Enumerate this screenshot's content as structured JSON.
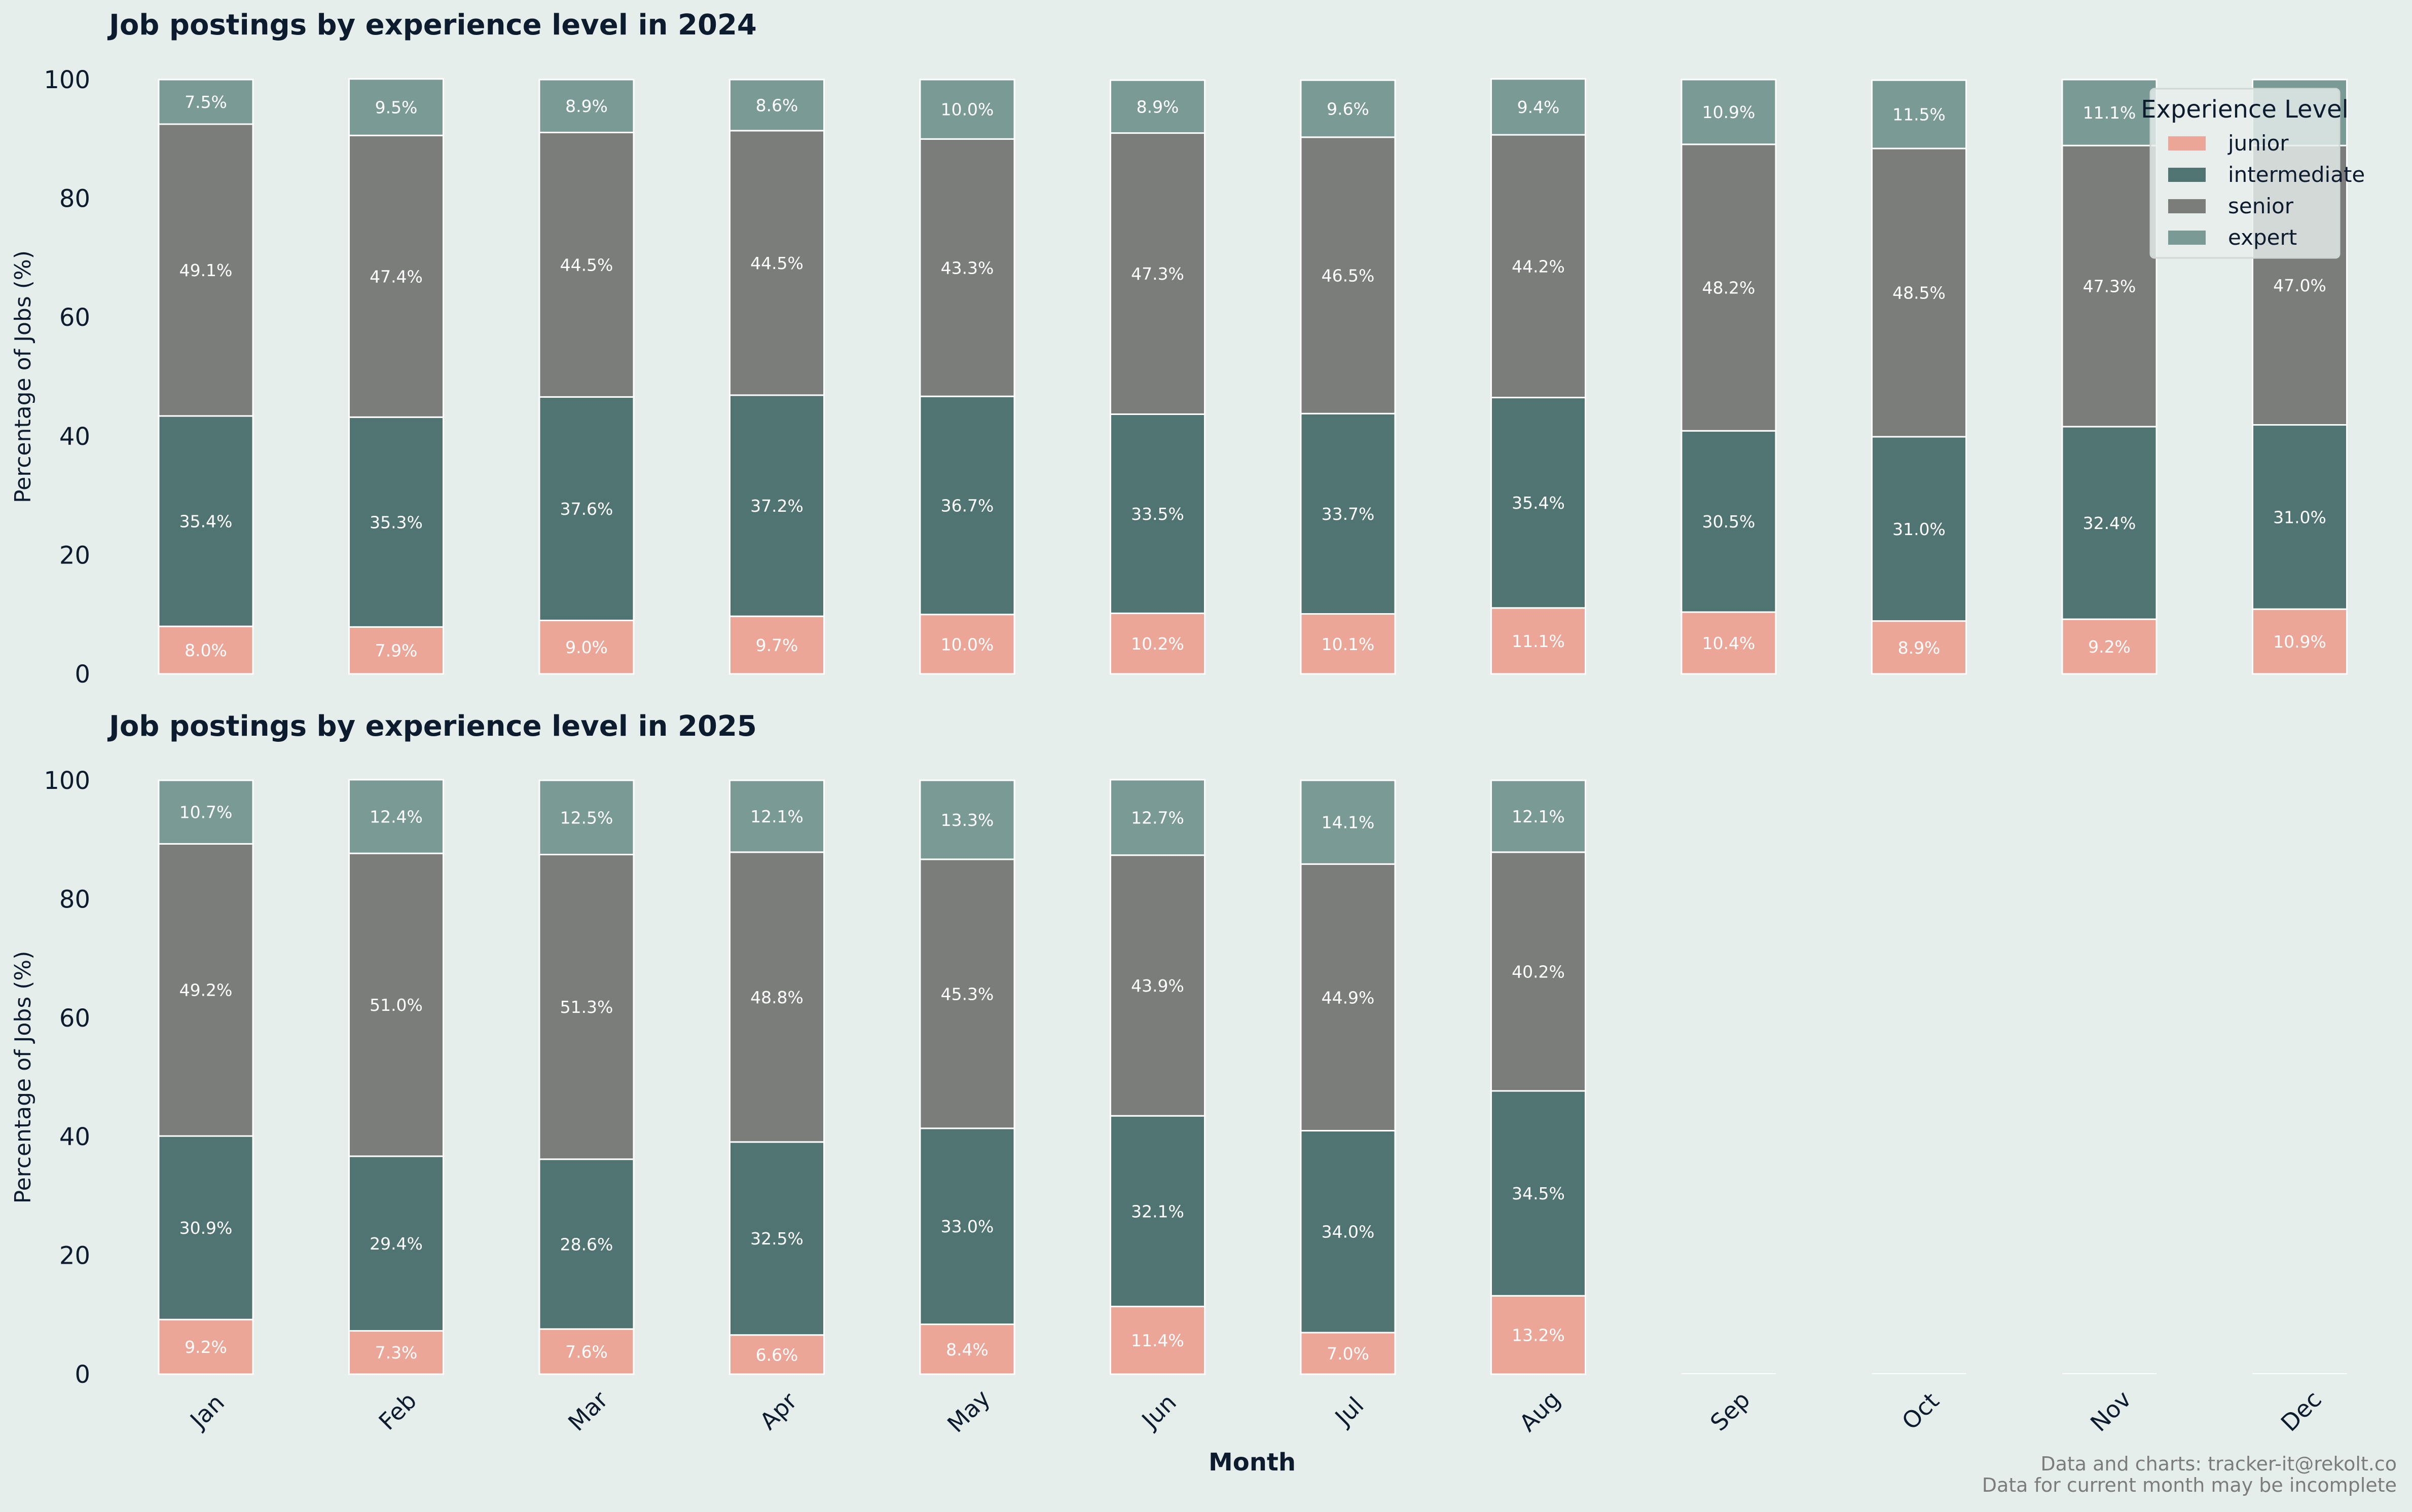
{
  "colors": {
    "background": "#e6eeeb",
    "title": "#0d1b2e",
    "axis_text": "#0d1b2e",
    "junior": "#eba698",
    "intermediate": "#4f7471",
    "senior": "#7b7d7b",
    "expert": "#7a9a96",
    "bar_edge": "#ffffff",
    "label_text": "#ffffff",
    "footer_text": "#7b7d7b"
  },
  "legend": {
    "title": "Experience Level",
    "items": [
      "junior",
      "intermediate",
      "senior",
      "expert"
    ]
  },
  "footer": {
    "line1": "Data and charts: tracker-it@rekolt.co",
    "line2": "Data for current month may be incomplete"
  },
  "chart_data": [
    {
      "type": "bar",
      "stacked": true,
      "title": "Job postings by experience level in 2024",
      "xlabel": "",
      "ylabel": "Percentage of Jobs (%)",
      "ylim": [
        0,
        100
      ],
      "yticks": [
        "0",
        "20",
        "40",
        "60",
        "80",
        "100"
      ],
      "legend_position": "top-right",
      "categories": [
        "Jan",
        "Feb",
        "Mar",
        "Apr",
        "May",
        "Jun",
        "Jul",
        "Aug",
        "Sep",
        "Oct",
        "Nov",
        "Dec"
      ],
      "series": [
        {
          "name": "junior",
          "values": [
            8.0,
            7.9,
            9.0,
            9.7,
            10.0,
            10.2,
            10.1,
            11.1,
            10.4,
            8.9,
            9.2,
            10.9
          ],
          "labels": [
            "8.0%",
            "7.9%",
            "9.0%",
            "9.7%",
            "10.0%",
            "10.2%",
            "10.1%",
            "11.1%",
            "10.4%",
            "8.9%",
            "9.2%",
            "10.9%"
          ]
        },
        {
          "name": "intermediate",
          "values": [
            35.4,
            35.3,
            37.6,
            37.2,
            36.7,
            33.5,
            33.7,
            35.4,
            30.5,
            31.0,
            32.4,
            31.0
          ],
          "labels": [
            "35.4%",
            "35.3%",
            "37.6%",
            "37.2%",
            "36.7%",
            "33.5%",
            "33.7%",
            "35.4%",
            "30.5%",
            "31.0%",
            "32.4%",
            "31.0%"
          ]
        },
        {
          "name": "senior",
          "values": [
            49.1,
            47.4,
            44.5,
            44.5,
            43.3,
            47.3,
            46.5,
            44.2,
            48.2,
            48.5,
            47.3,
            47.0
          ],
          "labels": [
            "49.1%",
            "47.4%",
            "44.5%",
            "44.5%",
            "43.3%",
            "47.3%",
            "46.5%",
            "44.2%",
            "48.2%",
            "48.5%",
            "47.3%",
            "47.0%"
          ]
        },
        {
          "name": "expert",
          "values": [
            7.5,
            9.5,
            8.9,
            8.6,
            10.0,
            8.9,
            9.6,
            9.4,
            10.9,
            11.5,
            11.1,
            11.1
          ],
          "labels": [
            "7.5%",
            "9.5%",
            "8.9%",
            "8.6%",
            "10.0%",
            "8.9%",
            "9.6%",
            "9.4%",
            "10.9%",
            "11.5%",
            "11.1%",
            ""
          ]
        }
      ]
    },
    {
      "type": "bar",
      "stacked": true,
      "title": "Job postings by experience level in 2025",
      "xlabel": "Month",
      "ylabel": "Percentage of Jobs (%)",
      "ylim": [
        0,
        100
      ],
      "yticks": [
        "0",
        "20",
        "40",
        "60",
        "80",
        "100"
      ],
      "categories": [
        "Jan",
        "Feb",
        "Mar",
        "Apr",
        "May",
        "Jun",
        "Jul",
        "Aug",
        "Sep",
        "Oct",
        "Nov",
        "Dec"
      ],
      "series": [
        {
          "name": "junior",
          "values": [
            9.2,
            7.3,
            7.6,
            6.6,
            8.4,
            11.4,
            7.0,
            13.2,
            0,
            0,
            0,
            0
          ],
          "labels": [
            "9.2%",
            "7.3%",
            "7.6%",
            "6.6%",
            "8.4%",
            "11.4%",
            "7.0%",
            "13.2%",
            "",
            "",
            "",
            ""
          ]
        },
        {
          "name": "intermediate",
          "values": [
            30.9,
            29.4,
            28.6,
            32.5,
            33.0,
            32.1,
            34.0,
            34.5,
            0,
            0,
            0,
            0
          ],
          "labels": [
            "30.9%",
            "29.4%",
            "28.6%",
            "32.5%",
            "33.0%",
            "32.1%",
            "34.0%",
            "34.5%",
            "",
            "",
            "",
            ""
          ]
        },
        {
          "name": "senior",
          "values": [
            49.2,
            51.0,
            51.3,
            48.8,
            45.3,
            43.9,
            44.9,
            40.2,
            0,
            0,
            0,
            0
          ],
          "labels": [
            "49.2%",
            "51.0%",
            "51.3%",
            "48.8%",
            "45.3%",
            "43.9%",
            "44.9%",
            "40.2%",
            "",
            "",
            "",
            ""
          ]
        },
        {
          "name": "expert",
          "values": [
            10.7,
            12.4,
            12.5,
            12.1,
            13.3,
            12.7,
            14.1,
            12.1,
            0,
            0,
            0,
            0
          ],
          "labels": [
            "10.7%",
            "12.4%",
            "12.5%",
            "12.1%",
            "13.3%",
            "12.7%",
            "14.1%",
            "12.1%",
            "",
            "",
            "",
            ""
          ]
        }
      ]
    }
  ]
}
